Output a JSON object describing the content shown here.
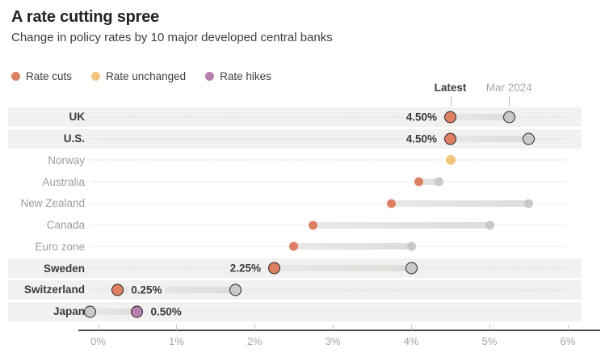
{
  "header": {
    "title": "A rate cutting spree",
    "subtitle": "Change in policy rates by 10 major developed central banks"
  },
  "legend": {
    "items": [
      {
        "label": "Rate cuts",
        "color": "#DC7F63"
      },
      {
        "label": "Rate unchanged",
        "color": "#F2C47E"
      },
      {
        "label": "Rate hikes",
        "color": "#B87FAE"
      }
    ]
  },
  "column_headers": {
    "latest": "Latest",
    "previous": "Mar 2024"
  },
  "chart_data": {
    "type": "dumbbell",
    "title": "A rate cutting spree",
    "subtitle": "Change in policy rates by 10 major developed central banks",
    "legend": [
      "Rate cuts",
      "Rate unchanged",
      "Rate hikes"
    ],
    "series_labels": {
      "latest": "Latest",
      "previous": "Mar 2024"
    },
    "x_axis": {
      "range": [
        0,
        6
      ],
      "unit": "%",
      "tick_values": [
        0,
        1,
        2,
        3,
        4,
        5,
        6
      ],
      "tick_labels": [
        "0%",
        "1%",
        "2%",
        "3%",
        "4%",
        "5%",
        "6%"
      ]
    },
    "rows": [
      {
        "bank": "UK",
        "latest": 4.5,
        "mar_2024": 5.25,
        "change": "cut",
        "value_label": "4.50%",
        "label_side": "left",
        "highlighted": true
      },
      {
        "bank": "U.S.",
        "latest": 4.5,
        "mar_2024": 5.5,
        "change": "cut",
        "value_label": "4.50%",
        "label_side": "left",
        "highlighted": true
      },
      {
        "bank": "Norway",
        "latest": 4.5,
        "mar_2024": 4.5,
        "change": "unchanged",
        "value_label": "",
        "label_side": "",
        "highlighted": false
      },
      {
        "bank": "Australia",
        "latest": 4.1,
        "mar_2024": 4.35,
        "change": "cut",
        "value_label": "",
        "label_side": "",
        "highlighted": false
      },
      {
        "bank": "New Zealand",
        "latest": 3.75,
        "mar_2024": 5.5,
        "change": "cut",
        "value_label": "",
        "label_side": "",
        "highlighted": false
      },
      {
        "bank": "Canada",
        "latest": 2.75,
        "mar_2024": 5.0,
        "change": "cut",
        "value_label": "",
        "label_side": "",
        "highlighted": false
      },
      {
        "bank": "Euro zone",
        "latest": 2.5,
        "mar_2024": 4.0,
        "change": "cut",
        "value_label": "",
        "label_side": "",
        "highlighted": false
      },
      {
        "bank": "Sweden",
        "latest": 2.25,
        "mar_2024": 4.0,
        "change": "cut",
        "value_label": "2.25%",
        "label_side": "left",
        "highlighted": true
      },
      {
        "bank": "Switzerland",
        "latest": 0.25,
        "mar_2024": 1.75,
        "change": "cut",
        "value_label": "0.25%",
        "label_side": "right",
        "highlighted": true
      },
      {
        "bank": "Japan",
        "latest": 0.5,
        "mar_2024": -0.1,
        "change": "hike",
        "value_label": "0.50%",
        "label_side": "right",
        "highlighted": true
      }
    ],
    "colors": {
      "rate_cut": "#DC7F63",
      "rate_unchanged": "#F2C47E",
      "rate_hike": "#B87FAE",
      "mar_2024_dot": "#C9C9C9",
      "dot_outline": "#242424",
      "connector": "#E2E0DE",
      "row_band": "#F2F1EF"
    }
  }
}
